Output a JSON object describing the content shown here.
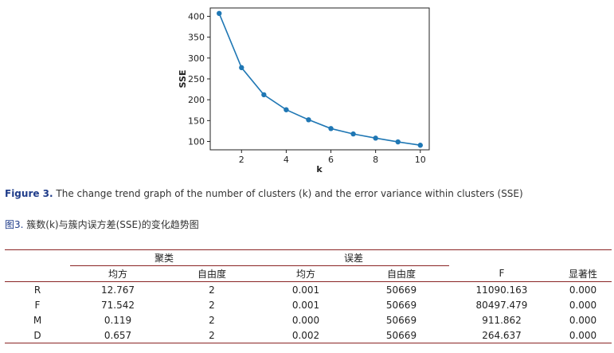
{
  "chart_data": {
    "type": "line",
    "title": "",
    "xlabel": "k",
    "ylabel": "SSE",
    "x": [
      1,
      2,
      3,
      4,
      5,
      6,
      7,
      8,
      9,
      10
    ],
    "series": [
      {
        "values": [
          407,
          277,
          212,
          176,
          152,
          131,
          118,
          108,
          99,
          91
        ]
      }
    ],
    "xlim": [
      0.6,
      10.4
    ],
    "ylim": [
      80,
      420
    ],
    "xticks": [
      "2",
      "4",
      "6",
      "8",
      "10"
    ],
    "yticks": [
      "100",
      "150",
      "200",
      "250",
      "300",
      "350",
      "400"
    ],
    "grid": false,
    "line_color": "#1f77b4"
  },
  "figure_caption": {
    "label": "Figure 3.",
    "text": " The change trend graph of the number of clusters (k) and the error variance within clusters (SSE)"
  },
  "figure_caption_cn": {
    "label": "图3.",
    "text": " 簇数(k)与簇内误方差(SSE)的变化趋势图"
  },
  "table": {
    "group_headers": {
      "between": "聚类",
      "within": "误差"
    },
    "col_headers": [
      "均方",
      "自由度",
      "均方",
      "自由度",
      "F",
      "显著性"
    ],
    "rows": [
      {
        "label": "R",
        "cells": [
          "12.767",
          "2",
          "0.001",
          "50669",
          "11090.163",
          "0.000"
        ]
      },
      {
        "label": "F",
        "cells": [
          "71.542",
          "2",
          "0.001",
          "50669",
          "80497.479",
          "0.000"
        ]
      },
      {
        "label": "M",
        "cells": [
          "0.119",
          "2",
          "0.000",
          "50669",
          "911.862",
          "0.000"
        ]
      },
      {
        "label": "D",
        "cells": [
          "0.657",
          "2",
          "0.002",
          "50669",
          "264.637",
          "0.000"
        ]
      }
    ]
  }
}
